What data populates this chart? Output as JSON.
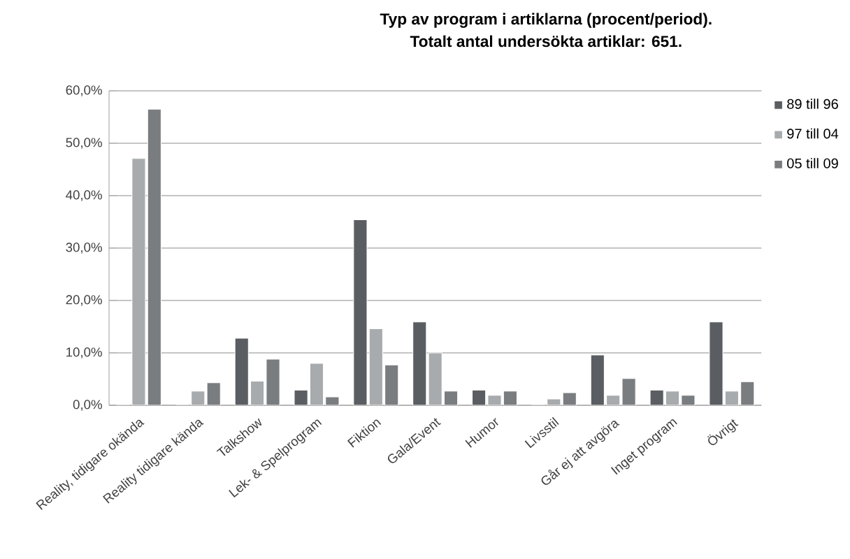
{
  "chart_data": {
    "type": "bar",
    "title": "Typ av program i artiklarna (procent/period).",
    "subtitle": "Totalt antal undersökta artiklar: 651.",
    "categories": [
      "Reality, tidigare okända",
      "Reality tidigare kända",
      "Talkshow",
      "Lek- & Spelprogram",
      "Fiktion",
      "Gala/Event",
      "Humor",
      "Livsstil",
      "Går ej att avgöra",
      "Inget program",
      "Övrigt"
    ],
    "series": [
      {
        "name": "89 till 96",
        "color": "#5a5e62",
        "values": [
          0,
          0,
          12.8,
          2.9,
          35.4,
          15.9,
          2.9,
          0,
          9.6,
          2.9,
          15.9
        ]
      },
      {
        "name": "97 till 04",
        "color": "#a8abad",
        "values": [
          47.1,
          2.7,
          4.6,
          8.0,
          14.6,
          10.0,
          1.9,
          1.2,
          1.9,
          2.7,
          2.7
        ]
      },
      {
        "name": "05 till 09",
        "color": "#7a7d80",
        "values": [
          56.5,
          4.3,
          8.8,
          1.6,
          7.7,
          2.7,
          2.7,
          2.4,
          5.1,
          1.9,
          4.5
        ]
      }
    ],
    "ylim": [
      0,
      60
    ],
    "yticks": [
      {
        "value": 0,
        "label": "0,0%"
      },
      {
        "value": 10,
        "label": "10,0%"
      },
      {
        "value": 20,
        "label": "20,0%"
      },
      {
        "value": 30,
        "label": "30,0%"
      },
      {
        "value": 40,
        "label": "40,0%"
      },
      {
        "value": 50,
        "label": "50,0%"
      },
      {
        "value": 60,
        "label": "60,0%"
      }
    ],
    "grid": "y",
    "legend": "right"
  }
}
